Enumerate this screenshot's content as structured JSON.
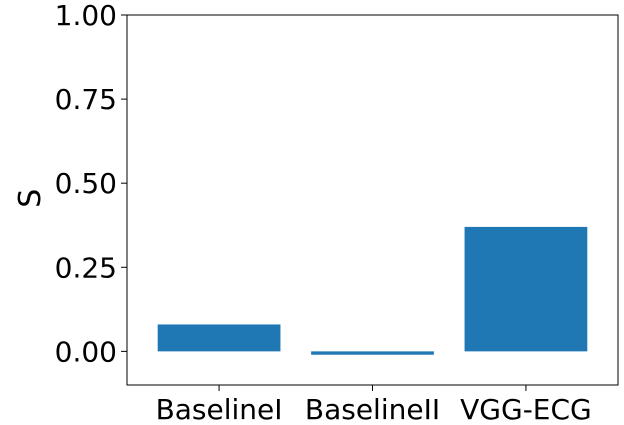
{
  "chart_data": {
    "type": "bar",
    "categories": [
      "BaselineI",
      "BaselineII",
      "VGG-ECG"
    ],
    "values": [
      0.08,
      -0.01,
      0.37
    ],
    "title": "",
    "xlabel": "",
    "ylabel": "S",
    "ylim": [
      -0.1,
      1.0
    ],
    "yticks": [
      0.0,
      0.25,
      0.5,
      0.75,
      1.0
    ],
    "ytick_labels": [
      "0.00",
      "0.25",
      "0.50",
      "0.75",
      "1.00"
    ],
    "bar_color": "#1f77b4",
    "grid": false,
    "legend": "none"
  }
}
